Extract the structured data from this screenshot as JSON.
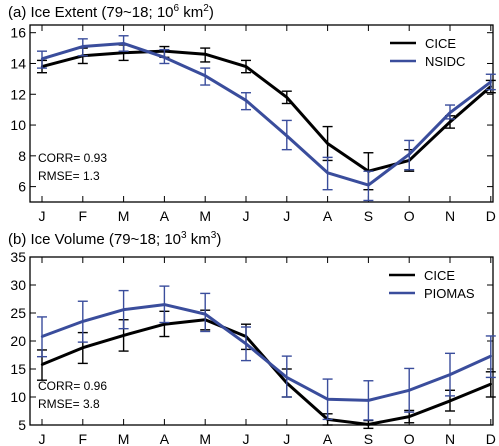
{
  "colors": {
    "cice": "#000000",
    "obs": "#3a4d9c",
    "axis": "#000000",
    "background": "#ffffff"
  },
  "chart_data": [
    {
      "type": "line",
      "panel": "a",
      "title_main": "(a) Ice Extent (79~18; 10",
      "title_sup": "6",
      "title_mid": " km",
      "title_sup2": "2",
      "title_end": ")",
      "categories": [
        "J",
        "F",
        "M",
        "A",
        "M",
        "J",
        "J",
        "A",
        "S",
        "O",
        "N",
        "D"
      ],
      "ylim": [
        5,
        16.5
      ],
      "yticks": [
        "6",
        "8",
        "10",
        "12",
        "14",
        "16"
      ],
      "ytick_values": [
        6,
        8,
        10,
        12,
        14,
        16
      ],
      "legend_position": "top-right",
      "stats": {
        "corr": "CORR= 0.93",
        "rmse": "RMSE=  1.3"
      },
      "series": [
        {
          "name": "CICE",
          "color": "#000000",
          "values": [
            13.8,
            14.5,
            14.7,
            14.8,
            14.6,
            13.8,
            11.8,
            8.8,
            7.0,
            7.7,
            10.2,
            12.5
          ],
          "err_low": [
            13.4,
            14.0,
            14.2,
            14.4,
            14.1,
            13.4,
            11.4,
            7.7,
            5.8,
            7.0,
            9.8,
            12.1
          ],
          "err_high": [
            14.2,
            15.0,
            15.2,
            15.1,
            15.0,
            14.2,
            12.2,
            9.9,
            8.2,
            8.4,
            10.6,
            12.9
          ]
        },
        {
          "name": "NSIDC",
          "color": "#3a4d9c",
          "values": [
            14.3,
            15.1,
            15.3,
            14.4,
            13.2,
            11.6,
            9.3,
            6.9,
            6.1,
            8.1,
            10.8,
            12.8
          ],
          "err_low": [
            13.7,
            14.5,
            14.8,
            14.0,
            12.6,
            11.0,
            8.4,
            5.8,
            5.1,
            7.1,
            10.4,
            12.3
          ],
          "err_high": [
            14.8,
            15.6,
            15.8,
            14.9,
            13.7,
            12.1,
            10.3,
            7.9,
            7.0,
            9.0,
            11.3,
            13.3
          ]
        }
      ]
    },
    {
      "type": "line",
      "panel": "b",
      "title_main": "(b) Ice Volume (79~18; 10",
      "title_sup": "3",
      "title_mid": " km",
      "title_sup2": "3",
      "title_end": ")",
      "categories": [
        "J",
        "F",
        "M",
        "A",
        "M",
        "J",
        "J",
        "A",
        "S",
        "O",
        "N",
        "D"
      ],
      "ylim": [
        5,
        35
      ],
      "yticks": [
        "5",
        "10",
        "15",
        "20",
        "25",
        "30",
        "35"
      ],
      "ytick_values": [
        5,
        10,
        15,
        20,
        25,
        30,
        35
      ],
      "legend_position": "top-right",
      "stats": {
        "corr": "CORR= 0.96",
        "rmse": "RMSE=  3.8"
      },
      "series": [
        {
          "name": "CICE",
          "color": "#000000",
          "values": [
            15.8,
            18.8,
            21.0,
            23.0,
            23.8,
            20.8,
            12.5,
            6.0,
            5.1,
            6.5,
            9.3,
            12.3
          ],
          "err_low": [
            13.0,
            16.0,
            18.2,
            20.8,
            22.0,
            18.5,
            10.0,
            5.0,
            4.4,
            5.4,
            7.5,
            10.0
          ],
          "err_high": [
            18.4,
            21.5,
            23.8,
            25.3,
            25.5,
            23.0,
            15.0,
            7.0,
            5.8,
            7.6,
            11.2,
            14.5
          ]
        },
        {
          "name": "PIOMAS",
          "color": "#3a4d9c",
          "values": [
            20.8,
            23.5,
            25.6,
            26.5,
            24.8,
            19.5,
            13.5,
            9.6,
            9.4,
            11.2,
            14.0,
            17.3
          ],
          "err_low": [
            17.2,
            19.8,
            22.2,
            23.3,
            21.7,
            16.5,
            10.0,
            6.0,
            5.9,
            7.3,
            10.2,
            13.5
          ],
          "err_high": [
            24.3,
            27.1,
            29.0,
            29.8,
            28.5,
            22.5,
            17.3,
            13.2,
            12.9,
            15.1,
            17.8,
            20.9
          ]
        }
      ]
    }
  ]
}
